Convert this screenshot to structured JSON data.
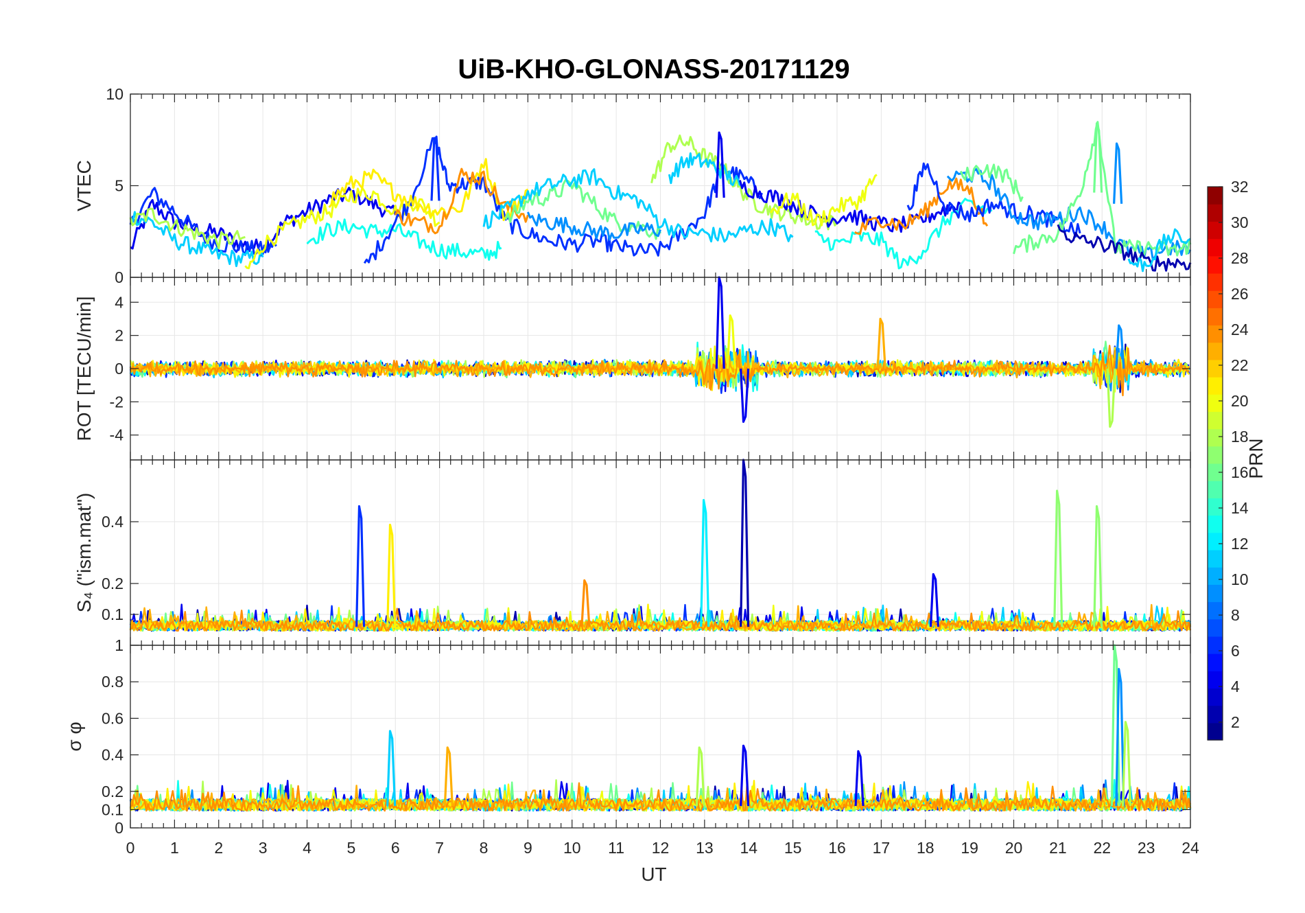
{
  "chart_data": {
    "type": "line",
    "title": "UiB-KHO-GLONASS-20171129",
    "xlabel": "UT",
    "x_range": [
      0,
      24
    ],
    "x_ticks": [
      "0",
      "1",
      "2",
      "3",
      "4",
      "5",
      "6",
      "7",
      "8",
      "9",
      "10",
      "11",
      "12",
      "13",
      "14",
      "15",
      "16",
      "17",
      "18",
      "19",
      "20",
      "21",
      "22",
      "23",
      "24"
    ],
    "grid": true,
    "colorbar": {
      "label": "PRN",
      "range": [
        1,
        32
      ],
      "colormap": "jet",
      "ticks": [
        "2",
        "4",
        "6",
        "8",
        "10",
        "12",
        "14",
        "16",
        "18",
        "20",
        "22",
        "24",
        "26",
        "28",
        "30",
        "32"
      ],
      "placement": "right"
    },
    "series_colors": {
      "prn2": "#00009f",
      "prn4": "#0000ef",
      "prn6": "#003fff",
      "prn9": "#0080ff",
      "prn11": "#00bfff",
      "prn13": "#20ffdf",
      "prn16": "#7fff80",
      "prn18": "#bfff40",
      "prn20": "#ffff00",
      "prn21": "#ffd700",
      "prn23": "#ff9f00",
      "prn24": "#ff7f00"
    },
    "panels": [
      {
        "ylabel": "VTEC",
        "ylim": [
          0,
          10
        ],
        "y_ticks": [
          "0",
          "5",
          "10"
        ],
        "spikes": [
          {
            "prn": 6,
            "x": 6.9,
            "y": 7.6
          },
          {
            "prn": 4,
            "x": 13.35,
            "y": 7.9
          },
          {
            "prn": 16,
            "x": 21.9,
            "y": 8.4
          },
          {
            "prn": 9,
            "x": 22.35,
            "y": 7.3
          }
        ],
        "series": [
          {
            "prn": 4,
            "x": [
              0.0,
              0.5,
              1.0,
              1.5,
              2.0,
              2.5,
              3.0,
              3.5,
              4.0,
              4.5,
              5.0,
              5.5,
              6.0
            ],
            "y": [
              1.5,
              4.0,
              3.0,
              2.6,
              2.4,
              1.8,
              1.6,
              3.0,
              3.6,
              4.2,
              4.6,
              4.0,
              3.4
            ]
          },
          {
            "prn": 6,
            "x": [
              0.0,
              0.5,
              1.0,
              1.5,
              2.0,
              2.5,
              3.0,
              3.3
            ],
            "y": [
              2.8,
              4.6,
              3.6,
              2.5,
              1.8,
              1.6,
              1.5,
              1.7
            ]
          },
          {
            "prn": 11,
            "x": [
              0.0,
              0.5,
              1.0,
              1.5,
              2.0,
              2.5,
              3.0
            ],
            "y": [
              3.4,
              3.0,
              2.0,
              1.6,
              1.2,
              1.0,
              1.1
            ]
          },
          {
            "prn": 18,
            "x": [
              0.0,
              0.5,
              1.0,
              1.5,
              2.0,
              2.6
            ],
            "y": [
              3.0,
              3.5,
              2.8,
              2.4,
              2.0,
              2.2
            ]
          },
          {
            "prn": 20,
            "x": [
              2.6,
              3.0,
              3.5,
              4.0,
              4.5,
              5.0,
              5.5,
              6.0,
              6.5,
              7.0
            ],
            "y": [
              0.2,
              1.8,
              2.6,
              3.2,
              3.6,
              4.5,
              4.6,
              3.6,
              4.2,
              3.0
            ]
          },
          {
            "prn": 13,
            "x": [
              4.0,
              4.5,
              5.0,
              5.5,
              6.0,
              6.5,
              7.0,
              7.5,
              8.0,
              8.4
            ],
            "y": [
              2.0,
              2.6,
              2.8,
              2.5,
              2.6,
              2.0,
              1.5,
              1.4,
              1.2,
              1.6
            ]
          },
          {
            "prn": 6,
            "x": [
              5.3,
              5.8,
              6.3,
              6.9,
              7.2,
              7.6,
              8.0,
              8.5,
              9.0,
              9.5,
              10.0,
              10.6,
              11.0,
              11.5,
              12.0,
              12.5,
              13.0,
              13.4,
              13.8,
              14.3
            ],
            "y": [
              0.5,
              2.3,
              4.0,
              7.6,
              5.0,
              5.1,
              5.2,
              3.0,
              2.4,
              2.0,
              1.8,
              2.0,
              1.7,
              1.4,
              1.5,
              2.4,
              3.5,
              6.0,
              5.5,
              4.6
            ]
          },
          {
            "prn": 21,
            "x": [
              4.5,
              5.0,
              5.5,
              6.0,
              6.5,
              7.0,
              7.5,
              8.0,
              8.5,
              9.0
            ],
            "y": [
              4.2,
              5.1,
              5.5,
              4.6,
              4.0,
              3.6,
              3.8,
              6.4,
              3.2,
              4.8
            ]
          },
          {
            "prn": 24,
            "x": [
              6.0,
              6.5,
              7.0,
              7.5,
              8.0,
              8.5,
              9.0
            ],
            "y": [
              3.4,
              3.0,
              2.8,
              5.6,
              5.4,
              3.8,
              3.4
            ]
          },
          {
            "prn": 16,
            "x": [
              8.5,
              9.0,
              9.5,
              10.0,
              10.5,
              11.0,
              11.5,
              12.0
            ],
            "y": [
              3.0,
              4.2,
              4.4,
              5.1,
              4.0,
              3.0,
              2.8,
              2.4
            ]
          },
          {
            "prn": 11,
            "x": [
              8.0,
              8.5,
              9.0,
              9.5,
              10.0,
              10.5,
              11.0,
              11.5,
              12.0,
              12.5,
              13.0,
              13.5,
              14.0,
              14.5,
              15.0
            ],
            "y": [
              3.0,
              3.6,
              4.6,
              5.0,
              5.3,
              5.5,
              4.6,
              4.2,
              3.0,
              2.4,
              2.4,
              2.2,
              2.6,
              2.8,
              2.2
            ]
          },
          {
            "prn": 9,
            "x": [
              9.0,
              9.5,
              10.0,
              10.5,
              11.0,
              11.5,
              12.0
            ],
            "y": [
              3.2,
              3.0,
              2.8,
              2.5,
              2.4,
              2.6,
              2.6
            ]
          },
          {
            "prn": 18,
            "x": [
              11.8,
              12.2,
              12.6,
              13.0,
              13.4,
              13.8,
              14.2,
              14.6,
              15.0,
              15.5,
              16.0
            ],
            "y": [
              5.2,
              7.2,
              7.4,
              6.6,
              6.0,
              4.8,
              4.0,
              3.6,
              3.4,
              3.0,
              3.0
            ]
          },
          {
            "prn": 11,
            "x": [
              12.2,
              12.6,
              13.0,
              13.4,
              13.8
            ],
            "y": [
              5.5,
              6.4,
              6.3,
              5.8,
              5.0
            ]
          },
          {
            "prn": 4,
            "x": [
              13.8,
              14.3,
              14.8,
              15.3,
              15.8,
              16.3,
              16.8,
              17.3,
              17.8,
              18.3,
              18.8
            ],
            "y": [
              5.0,
              4.6,
              4.2,
              3.6,
              3.2,
              3.4,
              3.0,
              2.8,
              3.0,
              3.6,
              4.0
            ]
          },
          {
            "prn": 20,
            "x": [
              14.5,
              15.0,
              15.5,
              16.0,
              16.5,
              16.9
            ],
            "y": [
              3.6,
              4.4,
              3.0,
              3.8,
              4.2,
              5.6
            ]
          },
          {
            "prn": 13,
            "x": [
              15.5,
              16.0,
              16.5,
              17.0,
              17.5,
              18.0,
              18.5,
              19.0,
              19.5
            ],
            "y": [
              2.2,
              1.8,
              2.2,
              2.0,
              0.6,
              1.6,
              3.2,
              4.0,
              3.6
            ]
          },
          {
            "prn": 24,
            "x": [
              16.4,
              17.0,
              17.5,
              18.0,
              18.5,
              19.0,
              19.4
            ],
            "y": [
              2.4,
              3.2,
              2.8,
              3.6,
              5.1,
              4.8,
              2.8
            ]
          },
          {
            "prn": 6,
            "x": [
              17.6,
              18.0,
              18.5,
              19.0,
              19.5,
              20.0,
              20.5,
              21.0,
              21.5
            ],
            "y": [
              3.6,
              6.2,
              3.8,
              3.4,
              4.0,
              3.6,
              3.4,
              3.0,
              2.4
            ]
          },
          {
            "prn": 9,
            "x": [
              18.5,
              19.0,
              19.5,
              20.0,
              20.5,
              21.0,
              21.5,
              22.0,
              22.5,
              23.0,
              23.5,
              24.0
            ],
            "y": [
              5.4,
              5.6,
              5.2,
              3.4,
              3.0,
              3.2,
              3.6,
              2.8,
              1.6,
              1.2,
              1.6,
              1.5
            ]
          },
          {
            "prn": 16,
            "x": [
              18.8,
              19.3,
              19.8,
              20.2
            ],
            "y": [
              5.4,
              6.0,
              5.6,
              4.4
            ]
          },
          {
            "prn": 16,
            "x": [
              20.0,
              20.5,
              21.0,
              21.5,
              21.9,
              22.3,
              22.7,
              23.2,
              23.7,
              24.0
            ],
            "y": [
              1.5,
              2.0,
              2.4,
              4.6,
              8.4,
              1.6,
              1.6,
              1.6,
              1.4,
              1.8
            ]
          },
          {
            "prn": 2,
            "x": [
              21.0,
              21.5,
              22.0,
              22.5,
              23.0,
              23.5,
              24.0
            ],
            "y": [
              2.6,
              2.0,
              1.8,
              1.4,
              0.8,
              0.8,
              0.8
            ]
          },
          {
            "prn": 11,
            "x": [
              22.6,
              23.0,
              23.5,
              24.0
            ],
            "y": [
              0.8,
              0.7,
              2.2,
              2.1
            ]
          }
        ]
      },
      {
        "ylabel": "ROT [TECU/min]",
        "ylim": [
          -5.5,
          5.5
        ],
        "y_ticks": [
          "-4",
          "-2",
          "0",
          "2",
          "4"
        ],
        "spikes": [
          {
            "prn": 4,
            "x": 13.35,
            "y": 5.5
          },
          {
            "prn": 4,
            "x": 13.9,
            "y": -3.2
          },
          {
            "prn": 20,
            "x": 13.6,
            "y": 3.2
          },
          {
            "prn": 18,
            "x": 22.2,
            "y": -3.5
          },
          {
            "prn": 23,
            "x": 17.0,
            "y": 3.0
          },
          {
            "prn": 9,
            "x": 22.4,
            "y": 2.6
          }
        ],
        "bursts": [
          {
            "x0": 0.0,
            "x1": 24.0,
            "amp": 0.55
          },
          {
            "x0": 12.8,
            "x1": 14.2,
            "amp": 1.6
          },
          {
            "x0": 21.8,
            "x1": 22.6,
            "amp": 1.8
          }
        ]
      },
      {
        "ylabel": "S₄ (\"ism.mat\")",
        "ylim": [
          0,
          0.6
        ],
        "y_ticks": [
          "0.1",
          "0.2",
          "0.4"
        ],
        "baseline": 0.06,
        "spikes": [
          {
            "prn": 6,
            "x": 5.2,
            "y": 0.45
          },
          {
            "prn": 21,
            "x": 5.9,
            "y": 0.39
          },
          {
            "prn": 24,
            "x": 10.3,
            "y": 0.21
          },
          {
            "prn": 12,
            "x": 13.0,
            "y": 0.47
          },
          {
            "prn": 2,
            "x": 13.9,
            "y": 0.6
          },
          {
            "prn": 17,
            "x": 21.0,
            "y": 0.5
          },
          {
            "prn": 17,
            "x": 21.9,
            "y": 0.45
          },
          {
            "prn": 4,
            "x": 18.2,
            "y": 0.23
          }
        ]
      },
      {
        "ylabel": "σ φ",
        "ylim": [
          0,
          1
        ],
        "y_ticks": [
          "0",
          "0.1",
          "0.2",
          "0.4",
          "0.6",
          "0.8",
          "1"
        ],
        "baseline": 0.12,
        "spikes": [
          {
            "prn": 11,
            "x": 5.9,
            "y": 0.53
          },
          {
            "prn": 23,
            "x": 7.2,
            "y": 0.44
          },
          {
            "prn": 4,
            "x": 13.9,
            "y": 0.45
          },
          {
            "prn": 4,
            "x": 16.5,
            "y": 0.42
          },
          {
            "prn": 18,
            "x": 12.9,
            "y": 0.44
          },
          {
            "prn": 16,
            "x": 22.3,
            "y": 1.0
          },
          {
            "prn": 9,
            "x": 22.4,
            "y": 0.87
          },
          {
            "prn": 18,
            "x": 22.55,
            "y": 0.58
          }
        ]
      }
    ]
  }
}
